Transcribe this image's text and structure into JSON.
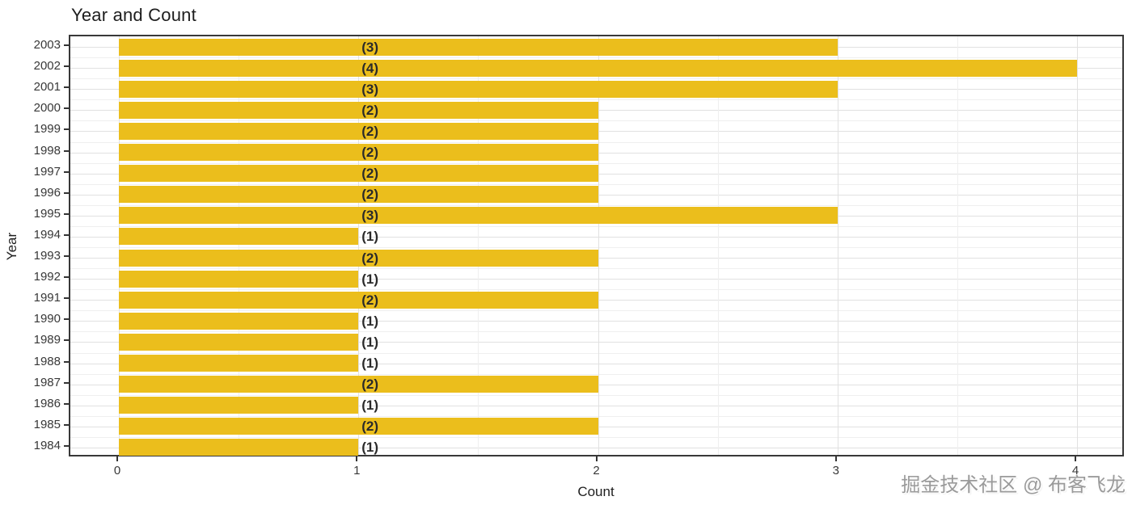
{
  "figure": {
    "watermark": "掘金技术社区 @ 布客飞龙"
  },
  "chart_data": {
    "type": "bar",
    "orientation": "horizontal",
    "title": "Year and Count",
    "xlabel": "Count",
    "ylabel": "Year",
    "categories": [
      "2003",
      "2002",
      "2001",
      "2000",
      "1999",
      "1998",
      "1997",
      "1996",
      "1995",
      "1994",
      "1993",
      "1992",
      "1991",
      "1990",
      "1989",
      "1988",
      "1987",
      "1986",
      "1985",
      "1984"
    ],
    "values": [
      3,
      4,
      3,
      2,
      2,
      2,
      2,
      2,
      3,
      1,
      2,
      1,
      2,
      1,
      1,
      1,
      2,
      1,
      2,
      1
    ],
    "bar_labels": [
      "(3)",
      "(4)",
      "(3)",
      "(2)",
      "(2)",
      "(2)",
      "(2)",
      "(2)",
      "(3)",
      "(1)",
      "(2)",
      "(1)",
      "(2)",
      "(1)",
      "(1)",
      "(1)",
      "(2)",
      "(1)",
      "(2)",
      "(1)"
    ],
    "x_ticks": [
      "0",
      "1",
      "2",
      "3",
      "4"
    ],
    "xlim": [
      0,
      4
    ],
    "grid": "major-and-minor",
    "legend": false,
    "bar_color": "#ebbe1c",
    "label_color": "#2a2a2a",
    "grid_major_color": "#e1e1e1",
    "grid_minor_color": "#efefef",
    "panel_border_color": "#383838"
  }
}
